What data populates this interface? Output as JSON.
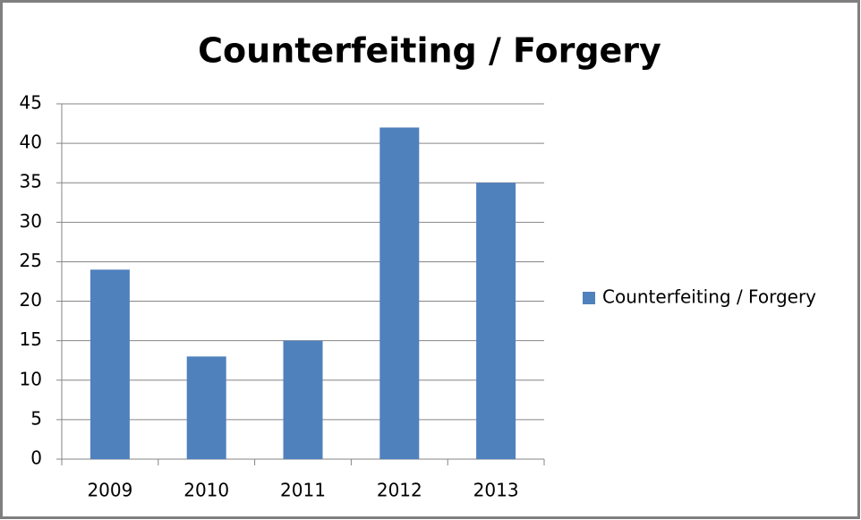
{
  "chart_data": {
    "type": "bar",
    "title": "Counterfeiting / Forgery",
    "categories": [
      "2009",
      "2010",
      "2011",
      "2012",
      "2013"
    ],
    "series": [
      {
        "name": "Counterfeiting / Forgery",
        "color": "#4f81bd",
        "values": [
          24,
          13,
          15,
          42,
          35
        ]
      }
    ],
    "ylim": [
      0,
      45
    ],
    "yticks": [
      0,
      5,
      10,
      15,
      20,
      25,
      30,
      35,
      40,
      45
    ],
    "grid": true,
    "legend": "right"
  }
}
